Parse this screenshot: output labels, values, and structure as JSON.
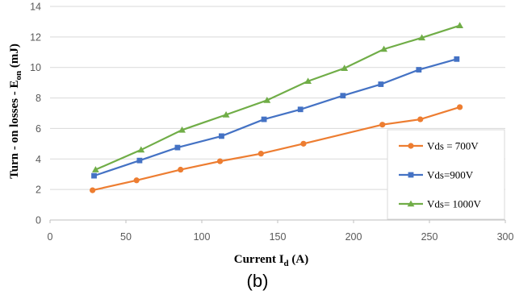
{
  "caption": "(b)",
  "chart_data": {
    "type": "line",
    "xlabel_main": "Current I",
    "xlabel_sub": "d",
    "xlabel_end": " (A)",
    "ylabel_main": "Turn - on losses - E",
    "ylabel_sub": "on",
    "ylabel_end": " (mJ)",
    "xlim": [
      0,
      300
    ],
    "ylim": [
      0,
      14
    ],
    "xticks": [
      0,
      50,
      100,
      150,
      200,
      250,
      300
    ],
    "yticks": [
      0,
      2,
      4,
      6,
      8,
      10,
      12,
      14
    ],
    "grid": "horizontal",
    "legend_position": "right",
    "series": [
      {
        "name": "Vds = 700V",
        "color": "#ED7D31",
        "marker": "circle",
        "x": [
          28,
          57,
          86,
          112,
          139,
          167,
          219,
          244,
          270
        ],
        "y": [
          1.95,
          2.6,
          3.3,
          3.85,
          4.35,
          5.0,
          6.25,
          6.6,
          7.4
        ]
      },
      {
        "name": "Vds=900V",
        "color": "#4472C4",
        "marker": "square",
        "x": [
          29,
          59,
          84,
          113,
          141,
          165,
          193,
          218,
          243,
          268
        ],
        "y": [
          2.9,
          3.9,
          4.75,
          5.5,
          6.6,
          7.25,
          8.15,
          8.9,
          9.85,
          10.55
        ]
      },
      {
        "name": "Vds= 1000V",
        "color": "#70AD47",
        "marker": "triangle",
        "x": [
          30,
          60,
          87,
          116,
          143,
          170,
          194,
          220,
          245,
          270
        ],
        "y": [
          3.3,
          4.6,
          5.9,
          6.9,
          7.85,
          9.1,
          9.95,
          11.2,
          11.95,
          12.75
        ]
      }
    ]
  }
}
